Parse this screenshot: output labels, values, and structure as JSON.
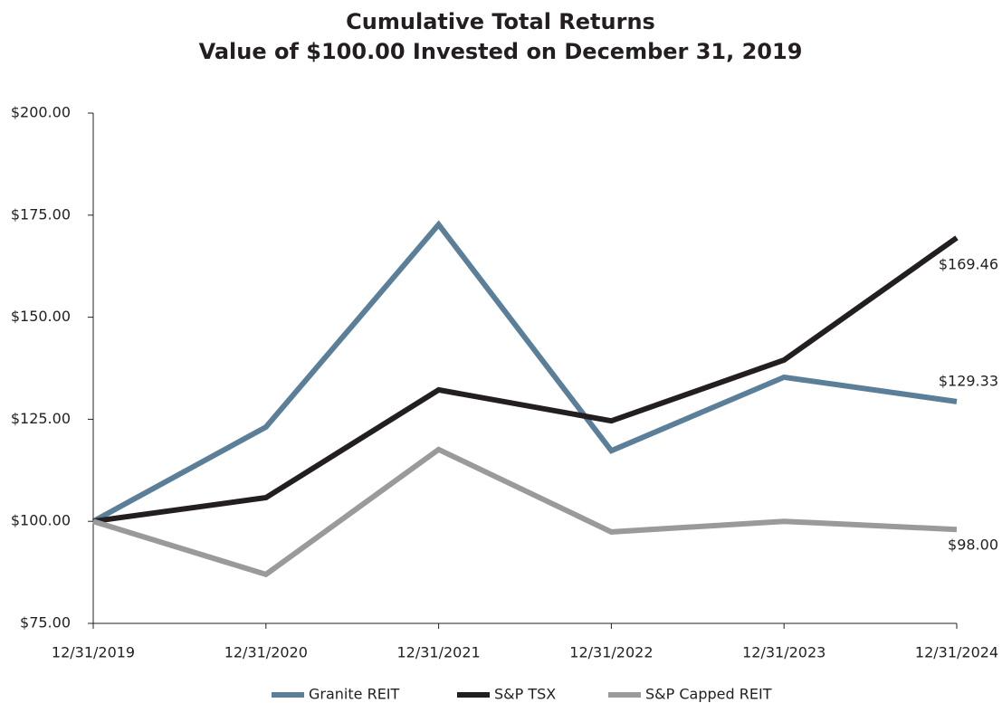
{
  "chart_data": {
    "type": "line",
    "title": "Cumulative Total Returns",
    "subtitle": "Value of $100.00 Invested on December 31, 2019",
    "categories": [
      "12/31/2019",
      "12/31/2020",
      "12/31/2021",
      "12/31/2022",
      "12/31/2023",
      "12/31/2024"
    ],
    "series": [
      {
        "name": "Granite REIT",
        "color": "#5b7f99",
        "values": [
          100,
          123.1,
          172.7,
          117.3,
          135.3,
          129.33
        ],
        "value_labels": [
          null,
          null,
          null,
          null,
          null,
          "$129.33"
        ]
      },
      {
        "name": "S&P TSX",
        "color": "#231f20",
        "values": [
          100,
          105.8,
          132.2,
          124.6,
          139.5,
          169.46
        ],
        "value_labels": [
          null,
          null,
          null,
          null,
          null,
          "$169.46"
        ]
      },
      {
        "name": "S&P Capped REIT",
        "color": "#9a9a9c",
        "values": [
          100,
          87.0,
          117.6,
          97.4,
          100.0,
          98.0
        ],
        "value_labels": [
          null,
          null,
          null,
          null,
          null,
          "$98.00"
        ]
      }
    ],
    "ylim": [
      75,
      200
    ],
    "yticks": [
      {
        "value": 75,
        "label": "$75.00"
      },
      {
        "value": 100,
        "label": "$100.00"
      },
      {
        "value": 125,
        "label": "$125.00"
      },
      {
        "value": 150,
        "label": "$150.00"
      },
      {
        "value": 175,
        "label": "$175.00"
      },
      {
        "value": 200,
        "label": "$200.00"
      }
    ],
    "legend": "bottom"
  }
}
